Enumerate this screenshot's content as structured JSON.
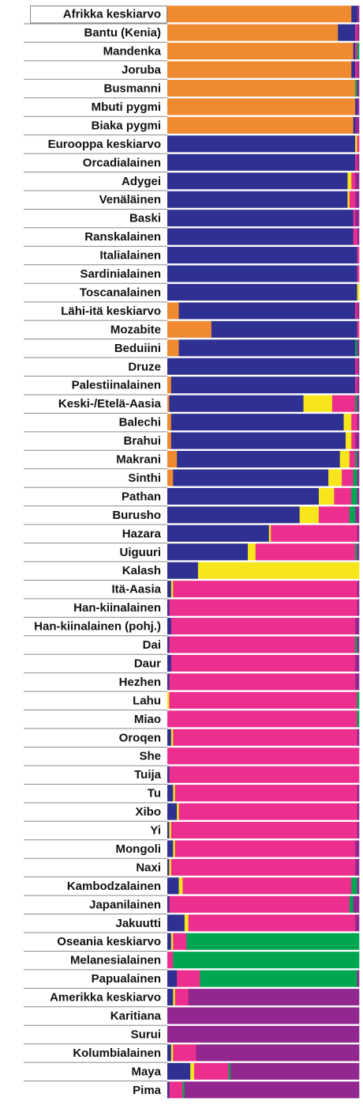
{
  "chart_data": {
    "type": "bar",
    "orientation": "horizontal",
    "stacked": true,
    "normalized": true,
    "grid": false,
    "legend": "none",
    "xlim": [
      0,
      1
    ],
    "series": [
      {
        "key": "africa",
        "color": "#ef8a31"
      },
      {
        "key": "westeurasia",
        "color": "#2e3192"
      },
      {
        "key": "centralasia",
        "color": "#f7e61c"
      },
      {
        "key": "eastasia",
        "color": "#ec2f8f"
      },
      {
        "key": "oceania",
        "color": "#00a651"
      },
      {
        "key": "america",
        "color": "#92278f"
      }
    ],
    "rows": [
      {
        "label": "Afrikka keskiarvo",
        "values": [
          0.96,
          0.03,
          0,
          0,
          0,
          0.01
        ],
        "boxed": true
      },
      {
        "label": "Bantu (Kenia)",
        "values": [
          0.89,
          0.09,
          0,
          0.01,
          0,
          0.01
        ]
      },
      {
        "label": "Mandenka",
        "values": [
          0.97,
          0.01,
          0,
          0.01,
          0.01,
          0
        ]
      },
      {
        "label": "Joruba",
        "values": [
          0.96,
          0.02,
          0,
          0.01,
          0,
          0.01
        ]
      },
      {
        "label": "Busmanni",
        "values": [
          0.98,
          0,
          0,
          0,
          0.01,
          0.01
        ]
      },
      {
        "label": "Mbuti pygmi",
        "values": [
          0.98,
          0.01,
          0,
          0,
          0,
          0.01
        ]
      },
      {
        "label": "Biaka pygmi",
        "values": [
          0.97,
          0.01,
          0,
          0,
          0,
          0.02
        ]
      },
      {
        "label": "Eurooppa keskiarvo",
        "values": [
          0,
          0.98,
          0.01,
          0.01,
          0,
          0
        ]
      },
      {
        "label": "Orcadialainen",
        "values": [
          0,
          0.98,
          0,
          0.01,
          0,
          0.01
        ]
      },
      {
        "label": "Adygei",
        "values": [
          0,
          0.94,
          0.02,
          0.02,
          0,
          0.02
        ]
      },
      {
        "label": "Venäläinen",
        "values": [
          0,
          0.94,
          0.01,
          0.03,
          0,
          0.02
        ]
      },
      {
        "label": "Baski",
        "values": [
          0,
          0.97,
          0,
          0.01,
          0,
          0.02
        ]
      },
      {
        "label": "Ranskalainen",
        "values": [
          0,
          0.97,
          0,
          0.02,
          0,
          0.01
        ]
      },
      {
        "label": "Italialainen",
        "values": [
          0,
          0.99,
          0,
          0.01,
          0,
          0
        ]
      },
      {
        "label": "Sardinialainen",
        "values": [
          0,
          0.99,
          0,
          0.01,
          0,
          0
        ]
      },
      {
        "label": "Toscanalainen",
        "values": [
          0,
          0.99,
          0.01,
          0,
          0,
          0
        ]
      },
      {
        "label": "Lähi-itä keskiarvo",
        "values": [
          0.06,
          0.92,
          0,
          0.01,
          0,
          0.01
        ]
      },
      {
        "label": "Mozabite",
        "values": [
          0.23,
          0.76,
          0,
          0.01,
          0,
          0
        ]
      },
      {
        "label": "Beduiini",
        "values": [
          0.06,
          0.92,
          0,
          0,
          0.01,
          0.01
        ]
      },
      {
        "label": "Druze",
        "values": [
          0,
          0.98,
          0,
          0.01,
          0,
          0.01
        ]
      },
      {
        "label": "Palestiinalainen",
        "values": [
          0.02,
          0.96,
          0,
          0.01,
          0,
          0.01
        ]
      },
      {
        "label": "Keski-/Etelä-Aasia",
        "values": [
          0.01,
          0.7,
          0.15,
          0.12,
          0.01,
          0.01
        ]
      },
      {
        "label": "Balechi",
        "values": [
          0.02,
          0.9,
          0.04,
          0.03,
          0,
          0.01
        ]
      },
      {
        "label": "Brahui",
        "values": [
          0.02,
          0.91,
          0.03,
          0.02,
          0,
          0.02
        ]
      },
      {
        "label": "Makrani",
        "values": [
          0.05,
          0.85,
          0.05,
          0.03,
          0.01,
          0.01
        ]
      },
      {
        "label": "Sinthi",
        "values": [
          0.03,
          0.81,
          0.07,
          0.06,
          0.02,
          0.01
        ]
      },
      {
        "label": "Pathan",
        "values": [
          0,
          0.79,
          0.08,
          0.09,
          0.03,
          0.01
        ]
      },
      {
        "label": "Burusho",
        "values": [
          0,
          0.69,
          0.1,
          0.16,
          0.03,
          0.02
        ]
      },
      {
        "label": "Hazara",
        "values": [
          0,
          0.53,
          0.01,
          0.45,
          0,
          0.01
        ]
      },
      {
        "label": "Uiguuri",
        "values": [
          0,
          0.42,
          0.04,
          0.52,
          0.01,
          0.01
        ]
      },
      {
        "label": "Kalash",
        "values": [
          0,
          0.16,
          0.84,
          0,
          0,
          0
        ]
      },
      {
        "label": "Itä-Aasia",
        "values": [
          0,
          0.02,
          0.01,
          0.96,
          0,
          0.01
        ]
      },
      {
        "label": "Han-kiinalainen",
        "values": [
          0,
          0.01,
          0,
          0.98,
          0,
          0.01
        ]
      },
      {
        "label": "Han-kiinalainen (pohj.)",
        "values": [
          0,
          0.02,
          0,
          0.96,
          0,
          0.02
        ]
      },
      {
        "label": "Dai",
        "values": [
          0,
          0.01,
          0,
          0.97,
          0.01,
          0.01
        ]
      },
      {
        "label": "Daur",
        "values": [
          0,
          0.02,
          0,
          0.96,
          0,
          0.02
        ]
      },
      {
        "label": "Hezhen",
        "values": [
          0,
          0.01,
          0,
          0.97,
          0,
          0.02
        ]
      },
      {
        "label": "Lahu",
        "values": [
          0,
          0,
          0.01,
          0.98,
          0.01,
          0
        ]
      },
      {
        "label": "Miao",
        "values": [
          0,
          0,
          0,
          0.99,
          0.01,
          0
        ]
      },
      {
        "label": "Oroqen",
        "values": [
          0,
          0.02,
          0.01,
          0.96,
          0,
          0.01
        ]
      },
      {
        "label": "She",
        "values": [
          0,
          0,
          0,
          1,
          0,
          0
        ]
      },
      {
        "label": "Tuija",
        "values": [
          0,
          0.01,
          0,
          0.99,
          0,
          0
        ]
      },
      {
        "label": "Tu",
        "values": [
          0,
          0.03,
          0.01,
          0.95,
          0,
          0.01
        ]
      },
      {
        "label": "Xibo",
        "values": [
          0,
          0.05,
          0.01,
          0.93,
          0,
          0.01
        ]
      },
      {
        "label": "Yi",
        "values": [
          0,
          0.01,
          0.01,
          0.97,
          0,
          0.01
        ]
      },
      {
        "label": "Mongoli",
        "values": [
          0,
          0.03,
          0.01,
          0.94,
          0,
          0.02
        ]
      },
      {
        "label": "Naxi",
        "values": [
          0,
          0.01,
          0.01,
          0.96,
          0,
          0.02
        ]
      },
      {
        "label": "Kambodzalainen",
        "values": [
          0,
          0.06,
          0.02,
          0.88,
          0.03,
          0.01
        ]
      },
      {
        "label": "Japanilainen",
        "values": [
          0,
          0.01,
          0,
          0.94,
          0.02,
          0.03
        ]
      },
      {
        "label": "Jakuutti",
        "values": [
          0,
          0.09,
          0.02,
          0.87,
          0,
          0.02
        ]
      },
      {
        "label": "Oseania keskiarvo",
        "values": [
          0,
          0.02,
          0.01,
          0.07,
          0.9,
          0
        ]
      },
      {
        "label": "Melanesialainen",
        "values": [
          0,
          0,
          0,
          0.03,
          0.97,
          0
        ]
      },
      {
        "label": "Papualainen",
        "values": [
          0,
          0.05,
          0,
          0.12,
          0.82,
          0.01
        ]
      },
      {
        "label": "Amerikka keskiarvo",
        "values": [
          0,
          0.03,
          0.01,
          0.07,
          0,
          0.89
        ]
      },
      {
        "label": "Karitiana",
        "values": [
          0,
          0,
          0,
          0,
          0,
          1
        ]
      },
      {
        "label": "Surui",
        "values": [
          0,
          0,
          0,
          0,
          0,
          1
        ]
      },
      {
        "label": "Kolumbialainen",
        "values": [
          0,
          0.02,
          0.01,
          0.12,
          0,
          0.85
        ]
      },
      {
        "label": "Maya",
        "values": [
          0,
          0.12,
          0.02,
          0.18,
          0.01,
          0.67
        ]
      },
      {
        "label": "Pima",
        "values": [
          0,
          0.01,
          0,
          0.07,
          0.01,
          0.91
        ]
      }
    ]
  }
}
